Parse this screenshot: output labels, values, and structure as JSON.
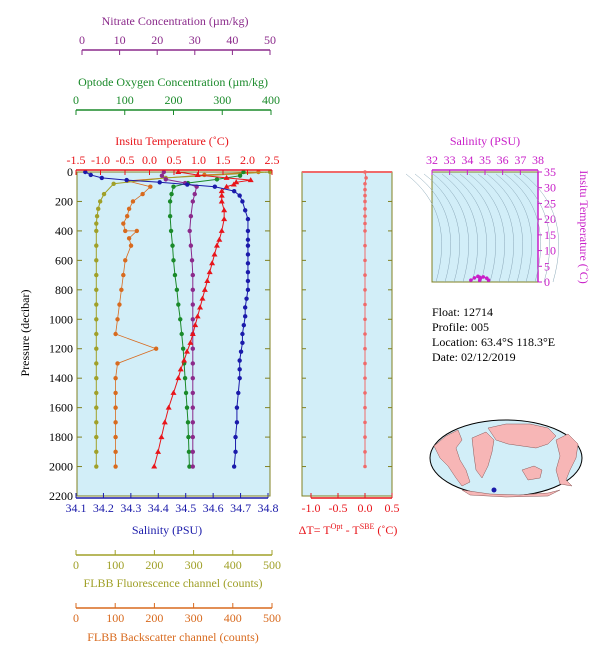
{
  "colors": {
    "nitrate": "#8b2a8b",
    "oxygen": "#1a8a2a",
    "temperature": "#e8141a",
    "salinity": "#1a1aaa",
    "fluorescence": "#a0a028",
    "backscatter": "#d86a1e",
    "delta_t": "#f06a6a",
    "ts": "#c81ec8",
    "plot_bg": "#d2eef8"
  },
  "float_info": {
    "float": "Float:  12714",
    "profile": "Profile:  005",
    "location": "Location:  63.4°S  118.3°E",
    "date": "Date:  02/12/2019"
  },
  "chart_data": [
    {
      "type": "line",
      "y_axis": {
        "label": "Pressure (decibar)",
        "range": [
          2200,
          0
        ],
        "ticks": [
          0,
          200,
          400,
          600,
          800,
          1000,
          1200,
          1400,
          1600,
          1800,
          2000,
          2200
        ]
      },
      "axes": {
        "nitrate": {
          "label": "Nitrate Concentration (µm/kg)",
          "range": [
            0,
            50
          ],
          "ticks": [
            0,
            10,
            20,
            30,
            40,
            50
          ]
        },
        "oxygen": {
          "label": "Optode Oxygen Concentration (µm/kg)",
          "range": [
            0,
            400
          ],
          "ticks": [
            0,
            100,
            200,
            300,
            400
          ]
        },
        "temperature": {
          "label": "Insitu Temperature (˚C)",
          "range": [
            -1.5,
            2.5
          ],
          "ticks": [
            "-1.5",
            "-1.0",
            "-0.5",
            "0.0",
            "0.5",
            "1.0",
            "1.5",
            "2.0",
            "2.5"
          ]
        },
        "salinity": {
          "label": "Salinity (PSU)",
          "range": [
            34.1,
            34.8
          ],
          "ticks": [
            "34.1",
            "34.2",
            "34.3",
            "34.4",
            "34.5",
            "34.6",
            "34.7",
            "34.8"
          ]
        },
        "fluorescence": {
          "label": "FLBB Fluorescence channel (counts)",
          "range": [
            0,
            500
          ],
          "ticks": [
            0,
            100,
            200,
            300,
            400,
            500
          ]
        },
        "backscatter": {
          "label": "FLBB Backscatter channel (counts)",
          "range": [
            0,
            500
          ],
          "ticks": [
            0,
            100,
            200,
            300,
            400,
            500
          ]
        }
      },
      "series": [
        {
          "name": "salinity",
          "axis": "salinity",
          "points": [
            [
              34.13,
              0
            ],
            [
              34.15,
              20
            ],
            [
              34.19,
              40
            ],
            [
              34.28,
              55
            ],
            [
              34.4,
              70
            ],
            [
              34.5,
              85
            ],
            [
              34.6,
              100
            ],
            [
              34.67,
              130
            ],
            [
              34.69,
              160
            ],
            [
              34.7,
              200
            ],
            [
              34.71,
              260
            ],
            [
              34.72,
              320
            ],
            [
              34.72,
              400
            ],
            [
              34.72,
              460
            ],
            [
              34.72,
              500
            ],
            [
              34.72,
              560
            ],
            [
              34.72,
              620
            ],
            [
              34.72,
              680
            ],
            [
              34.72,
              740
            ],
            [
              34.72,
              800
            ],
            [
              34.715,
              860
            ],
            [
              34.71,
              920
            ],
            [
              34.71,
              980
            ],
            [
              34.705,
              1040
            ],
            [
              34.7,
              1100
            ],
            [
              34.7,
              1160
            ],
            [
              34.695,
              1220
            ],
            [
              34.69,
              1280
            ],
            [
              34.69,
              1340
            ],
            [
              34.69,
              1400
            ],
            [
              34.685,
              1500
            ],
            [
              34.68,
              1600
            ],
            [
              34.68,
              1700
            ],
            [
              34.675,
              1800
            ],
            [
              34.675,
              1900
            ],
            [
              34.67,
              2000
            ]
          ]
        },
        {
          "name": "temperature",
          "axis": "temperature",
          "points": [
            [
              0.6,
              0
            ],
            [
              1.0,
              20
            ],
            [
              1.6,
              40
            ],
            [
              2.1,
              55
            ],
            [
              1.8,
              70
            ],
            [
              1.75,
              85
            ],
            [
              1.6,
              100
            ],
            [
              1.5,
              130
            ],
            [
              1.5,
              160
            ],
            [
              1.5,
              200
            ],
            [
              1.55,
              260
            ],
            [
              1.55,
              320
            ],
            [
              1.5,
              400
            ],
            [
              1.45,
              460
            ],
            [
              1.4,
              500
            ],
            [
              1.35,
              560
            ],
            [
              1.3,
              620
            ],
            [
              1.25,
              680
            ],
            [
              1.2,
              740
            ],
            [
              1.15,
              800
            ],
            [
              1.1,
              860
            ],
            [
              1.05,
              920
            ],
            [
              1.0,
              980
            ],
            [
              0.95,
              1040
            ],
            [
              0.9,
              1100
            ],
            [
              0.85,
              1160
            ],
            [
              0.78,
              1220
            ],
            [
              0.72,
              1280
            ],
            [
              0.65,
              1340
            ],
            [
              0.6,
              1400
            ],
            [
              0.5,
              1500
            ],
            [
              0.4,
              1600
            ],
            [
              0.32,
              1700
            ],
            [
              0.25,
              1800
            ],
            [
              0.18,
              1900
            ],
            [
              0.1,
              2000
            ]
          ]
        },
        {
          "name": "nitrate",
          "axis": "nitrate",
          "points": [
            [
              22.5,
              0
            ],
            [
              22,
              25
            ],
            [
              23,
              50
            ],
            [
              28,
              75
            ],
            [
              31,
              100
            ],
            [
              30.5,
              150
            ],
            [
              30,
              200
            ],
            [
              29.5,
              300
            ],
            [
              29.2,
              400
            ],
            [
              29.5,
              500
            ],
            [
              29.8,
              600
            ],
            [
              30,
              700
            ],
            [
              30,
              800
            ],
            [
              30,
              900
            ],
            [
              30,
              1000
            ],
            [
              30,
              1100
            ],
            [
              30,
              1200
            ],
            [
              30,
              1300
            ],
            [
              30,
              1400
            ],
            [
              30,
              1500
            ],
            [
              30,
              1600
            ],
            [
              30,
              1700
            ],
            [
              30,
              1800
            ],
            [
              30,
              1900
            ],
            [
              30,
              2000
            ]
          ]
        },
        {
          "name": "oxygen",
          "axis": "oxygen",
          "points": [
            [
              345,
              0
            ],
            [
              338,
              25
            ],
            [
              290,
              50
            ],
            [
              230,
              75
            ],
            [
              200,
              100
            ],
            [
              196,
              150
            ],
            [
              193,
              200
            ],
            [
              193,
              300
            ],
            [
              195,
              400
            ],
            [
              198,
              500
            ],
            [
              200,
              600
            ],
            [
              203,
              700
            ],
            [
              207,
              800
            ],
            [
              210,
              900
            ],
            [
              214,
              1000
            ],
            [
              217,
              1100
            ],
            [
              220,
              1200
            ],
            [
              222,
              1300
            ],
            [
              224,
              1400
            ],
            [
              226,
              1500
            ],
            [
              228,
              1600
            ],
            [
              230,
              1700
            ],
            [
              231,
              1800
            ],
            [
              232,
              1900
            ],
            [
              233,
              2000
            ]
          ]
        },
        {
          "name": "fluorescence",
          "axis": "fluorescence",
          "points": [
            [
              500,
              0
            ],
            [
              230,
              40
            ],
            [
              95,
              80
            ],
            [
              70,
              150
            ],
            [
              60,
              200
            ],
            [
              55,
              250
            ],
            [
              52,
              300
            ],
            [
              50,
              350
            ],
            [
              50,
              400
            ],
            [
              50,
              500
            ],
            [
              50,
              600
            ],
            [
              50,
              700
            ],
            [
              50,
              800
            ],
            [
              50,
              900
            ],
            [
              50,
              1000
            ],
            [
              50,
              1100
            ],
            [
              50,
              1200
            ],
            [
              50,
              1300
            ],
            [
              50,
              1400
            ],
            [
              50,
              1500
            ],
            [
              50,
              1600
            ],
            [
              50,
              1700
            ],
            [
              50,
              1800
            ],
            [
              50,
              1900
            ],
            [
              50,
              2000
            ]
          ]
        },
        {
          "name": "backscatter",
          "axis": "backscatter",
          "points": [
            [
              470,
              0
            ],
            [
              330,
              20
            ],
            [
              130,
              60
            ],
            [
              190,
              100
            ],
            [
              170,
              150
            ],
            [
              145,
              200
            ],
            [
              135,
              250
            ],
            [
              130,
              300
            ],
            [
              120,
              350
            ],
            [
              125,
              400
            ],
            [
              155,
              400
            ],
            [
              135,
              450
            ],
            [
              140,
              500
            ],
            [
              125,
              600
            ],
            [
              120,
              700
            ],
            [
              115,
              800
            ],
            [
              110,
              900
            ],
            [
              105,
              1000
            ],
            [
              100,
              1100
            ],
            [
              205,
              1200
            ],
            [
              105,
              1300
            ],
            [
              100,
              1400
            ],
            [
              100,
              1500
            ],
            [
              100,
              1600
            ],
            [
              100,
              1700
            ],
            [
              100,
              1800
            ],
            [
              100,
              1900
            ],
            [
              100,
              2000
            ]
          ]
        }
      ]
    },
    {
      "type": "line",
      "x_axis": {
        "label": "ΔT= T^Opt - T^SBE (˚C)",
        "range": [
          -1.0,
          0.5
        ],
        "ticks": [
          "-1.0",
          "-0.5",
          "0.0",
          "0.5"
        ]
      },
      "y_axis": {
        "range": [
          2200,
          0
        ]
      },
      "series": [
        {
          "name": "delta_t",
          "points": [
            [
              0.0,
              0
            ],
            [
              0.02,
              40
            ],
            [
              0.0,
              80
            ],
            [
              0.0,
              120
            ],
            [
              0.0,
              160
            ],
            [
              0.0,
              200
            ],
            [
              0.0,
              250
            ],
            [
              0.0,
              300
            ],
            [
              0.0,
              350
            ],
            [
              0.0,
              400
            ],
            [
              0.0,
              500
            ],
            [
              0.0,
              600
            ],
            [
              0.0,
              700
            ],
            [
              0.0,
              800
            ],
            [
              0.0,
              900
            ],
            [
              0.0,
              1000
            ],
            [
              0.0,
              1100
            ],
            [
              0.0,
              1200
            ],
            [
              0.0,
              1300
            ],
            [
              0.0,
              1400
            ],
            [
              0.0,
              1500
            ],
            [
              0.0,
              1600
            ],
            [
              0.0,
              1700
            ],
            [
              0.0,
              1800
            ],
            [
              0.0,
              1900
            ],
            [
              0.0,
              2000
            ]
          ]
        }
      ]
    },
    {
      "type": "scatter",
      "x_axis": {
        "label": "Salinity (PSU)",
        "range": [
          32,
          38
        ],
        "ticks": [
          "32",
          "33",
          "34",
          "35",
          "36",
          "37",
          "38"
        ]
      },
      "y_axis": {
        "label": "Insitu Temperature (˚C)",
        "range": [
          0,
          35
        ],
        "ticks": [
          "0",
          "5",
          "10",
          "15",
          "20",
          "25",
          "30",
          "35"
        ]
      },
      "series": [
        {
          "name": "ts",
          "points": [
            [
              34.2,
              0.6
            ],
            [
              34.4,
              1.3
            ],
            [
              34.6,
              1.8
            ],
            [
              34.7,
              1.5
            ],
            [
              34.72,
              1.1
            ],
            [
              34.7,
              0.5
            ],
            [
              34.9,
              1.6
            ],
            [
              35.1,
              1.2
            ],
            [
              35.2,
              0.6
            ]
          ]
        }
      ]
    }
  ]
}
